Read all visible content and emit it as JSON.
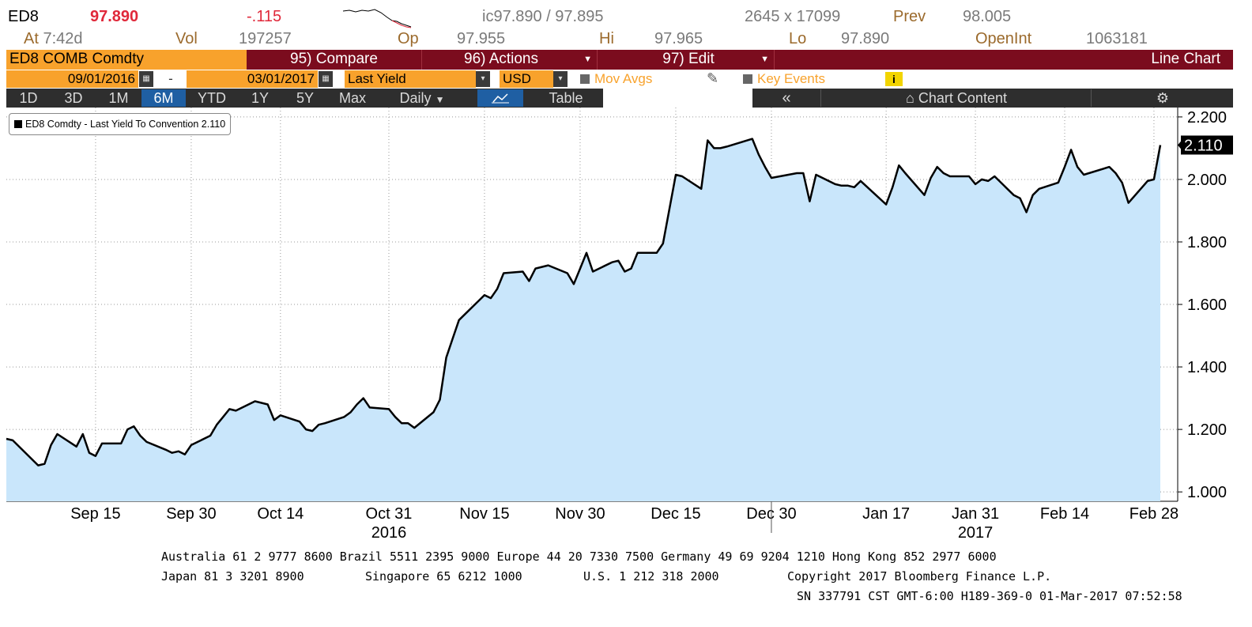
{
  "quote": {
    "ticker": "ED8",
    "last": "97.890",
    "change": "-.115",
    "bid_ask": "ic97.890 / 97.895",
    "size": "2645 x 17099",
    "prev_label": "Prev",
    "prev": "98.005",
    "at_label": "At",
    "time": "7:42",
    "time_suffix": "d",
    "vol_label": "Vol",
    "vol": "197257",
    "open_label": "Op",
    "open": "97.955",
    "hi_label": "Hi",
    "hi": "97.965",
    "lo_label": "Lo",
    "lo": "97.890",
    "openint_label": "OpenInt",
    "openint": "1063181"
  },
  "menubar": {
    "security": "ED8 COMB Comdty",
    "compare": "95) Compare",
    "actions": "96) Actions",
    "edit": "97) Edit",
    "chart_type": "Line Chart"
  },
  "settings": {
    "start_date": "09/01/2016",
    "dash": "-",
    "end_date": "03/01/2017",
    "field": "Last Yield",
    "currency": "USD",
    "mov_avgs": "Mov Avgs",
    "key_events": "Key Events",
    "info": "i"
  },
  "ranges": [
    "1D",
    "3D",
    "1M",
    "6M",
    "YTD",
    "1Y",
    "5Y",
    "Max"
  ],
  "range_selected": "6M",
  "periodicity": "Daily",
  "table_label": "Table",
  "back_label": "«",
  "chart_content_label": "Chart Content",
  "colors": {
    "area_fill": "#c9e6fb",
    "line": "#000000",
    "accent_orange": "#f8a22c",
    "menu_maroon": "#7b0c1e"
  },
  "chart_data": {
    "type": "area",
    "legend": "ED8 Comdty - Last Yield To Convention 2.110",
    "last_value_label": "2.110",
    "ylim": [
      0.97,
      2.22
    ],
    "yticks": [
      "2.200",
      "2.000",
      "1.800",
      "1.600",
      "1.400",
      "1.200",
      "1.000"
    ],
    "xticks": [
      "Sep 15",
      "Sep 30",
      "Oct 14",
      "Oct 31",
      "Nov 15",
      "Nov 30",
      "Dec 15",
      "Dec 30",
      "Jan 17",
      "Jan 31",
      "Feb 14",
      "Feb 28"
    ],
    "year_labels": [
      "2016",
      "2017"
    ],
    "grid": true,
    "legend_position": "top-left",
    "x": [
      "2016-09-01",
      "2016-09-02",
      "2016-09-06",
      "2016-09-07",
      "2016-09-08",
      "2016-09-09",
      "2016-09-12",
      "2016-09-13",
      "2016-09-14",
      "2016-09-15",
      "2016-09-16",
      "2016-09-19",
      "2016-09-20",
      "2016-09-21",
      "2016-09-22",
      "2016-09-23",
      "2016-09-26",
      "2016-09-27",
      "2016-09-28",
      "2016-09-29",
      "2016-09-30",
      "2016-10-03",
      "2016-10-04",
      "2016-10-05",
      "2016-10-06",
      "2016-10-07",
      "2016-10-10",
      "2016-10-11",
      "2016-10-12",
      "2016-10-13",
      "2016-10-14",
      "2016-10-17",
      "2016-10-18",
      "2016-10-19",
      "2016-10-20",
      "2016-10-21",
      "2016-10-24",
      "2016-10-25",
      "2016-10-26",
      "2016-10-27",
      "2016-10-28",
      "2016-10-31",
      "2016-11-01",
      "2016-11-02",
      "2016-11-03",
      "2016-11-04",
      "2016-11-07",
      "2016-11-08",
      "2016-11-09",
      "2016-11-10",
      "2016-11-11",
      "2016-11-14",
      "2016-11-15",
      "2016-11-16",
      "2016-11-17",
      "2016-11-18",
      "2016-11-21",
      "2016-11-22",
      "2016-11-23",
      "2016-11-25",
      "2016-11-28",
      "2016-11-29",
      "2016-11-30",
      "2016-12-01",
      "2016-12-02",
      "2016-12-05",
      "2016-12-06",
      "2016-12-07",
      "2016-12-08",
      "2016-12-09",
      "2016-12-12",
      "2016-12-13",
      "2016-12-14",
      "2016-12-15",
      "2016-12-16",
      "2016-12-19",
      "2016-12-20",
      "2016-12-21",
      "2016-12-22",
      "2016-12-23",
      "2016-12-27",
      "2016-12-28",
      "2016-12-29",
      "2016-12-30",
      "2017-01-03",
      "2017-01-04",
      "2017-01-05",
      "2017-01-06",
      "2017-01-09",
      "2017-01-10",
      "2017-01-11",
      "2017-01-12",
      "2017-01-13",
      "2017-01-17",
      "2017-01-18",
      "2017-01-19",
      "2017-01-20",
      "2017-01-23",
      "2017-01-24",
      "2017-01-25",
      "2017-01-26",
      "2017-01-27",
      "2017-01-30",
      "2017-01-31",
      "2017-02-01",
      "2017-02-02",
      "2017-02-03",
      "2017-02-06",
      "2017-02-07",
      "2017-02-08",
      "2017-02-09",
      "2017-02-10",
      "2017-02-13",
      "2017-02-14",
      "2017-02-15",
      "2017-02-16",
      "2017-02-17",
      "2017-02-21",
      "2017-02-22",
      "2017-02-23",
      "2017-02-24",
      "2017-02-27",
      "2017-02-28",
      "2017-03-01"
    ],
    "values": [
      1.17,
      1.165,
      1.085,
      1.09,
      1.15,
      1.185,
      1.145,
      1.185,
      1.125,
      1.115,
      1.155,
      1.155,
      1.2,
      1.21,
      1.18,
      1.16,
      1.135,
      1.125,
      1.13,
      1.12,
      1.15,
      1.18,
      1.215,
      1.24,
      1.265,
      1.26,
      1.29,
      1.285,
      1.28,
      1.23,
      1.245,
      1.225,
      1.2,
      1.195,
      1.215,
      1.22,
      1.24,
      1.255,
      1.28,
      1.3,
      1.27,
      1.265,
      1.24,
      1.22,
      1.22,
      1.205,
      1.255,
      1.295,
      1.43,
      1.49,
      1.55,
      1.61,
      1.63,
      1.62,
      1.65,
      1.7,
      1.705,
      1.675,
      1.715,
      1.725,
      1.7,
      1.665,
      1.715,
      1.765,
      1.705,
      1.735,
      1.74,
      1.705,
      1.715,
      1.765,
      1.765,
      1.795,
      1.905,
      2.015,
      2.01,
      1.97,
      2.125,
      2.1,
      2.1,
      2.105,
      2.13,
      2.08,
      2.04,
      2.005,
      2.02,
      2.02,
      1.93,
      2.015,
      1.985,
      1.98,
      1.98,
      1.975,
      1.995,
      1.92,
      1.975,
      2.045,
      2.02,
      1.95,
      2.005,
      2.04,
      2.02,
      2.01,
      2.01,
      1.985,
      2.0,
      1.995,
      2.01,
      1.95,
      1.94,
      1.895,
      1.95,
      1.97,
      1.99,
      2.04,
      2.095,
      2.04,
      2.015,
      2.04,
      2.02,
      1.99,
      1.925,
      1.995,
      2.0,
      2.11
    ]
  },
  "footer": {
    "line1": "Australia 61 2 9777 8600 Brazil 5511 2395 9000 Europe 44 20 7330 7500 Germany 49 69 9204 1210 Hong Kong 852 2977 6000",
    "line2a": "Japan 81 3 3201 8900",
    "line2b": "Singapore 65 6212 1000",
    "line2c": "U.S. 1 212 318 2000",
    "line2d": "Copyright 2017 Bloomberg Finance L.P.",
    "line3": "SN 337791 CST  GMT-6:00 H189-369-0 01-Mar-2017 07:52:58"
  }
}
